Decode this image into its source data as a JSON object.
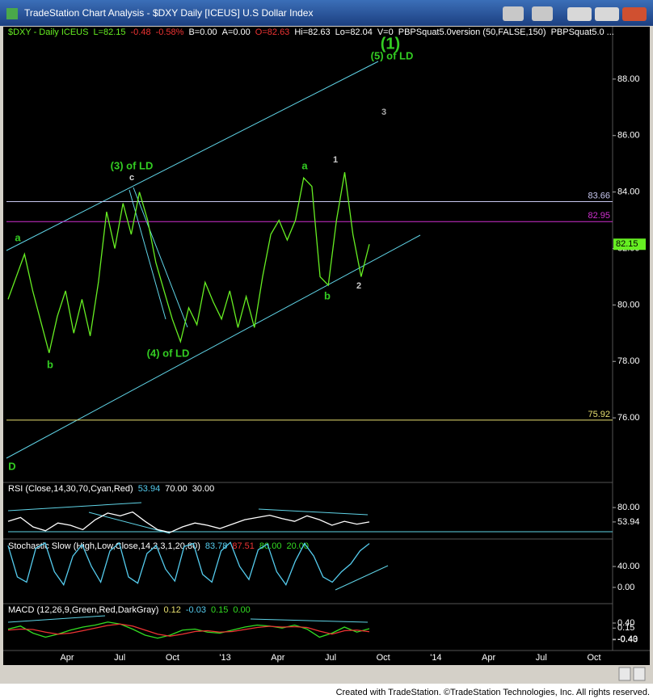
{
  "window": {
    "title": "TradeStation Chart Analysis - $DXY Daily [ICEUS] U.S Dollar Index",
    "footer": "Created with TradeStation. ©TradeStation Technologies, Inc. All rights reserved."
  },
  "price_chart": {
    "header": [
      "$DXY - Daily ICEUS",
      "L=82.15",
      "-0.48",
      "-0.58%",
      "B=0.00",
      "A=0.00",
      "O=82.63",
      "Hi=82.63",
      "Lo=82.04",
      "V=0",
      "PBPSquat5.0version (50,FALSE,150)",
      "PBPSquat5.0 ..."
    ],
    "ylim": [
      73.77,
      89.8
    ],
    "yticks": [
      {
        "value": 76,
        "label": "76.00"
      },
      {
        "value": 78,
        "label": "78.00"
      },
      {
        "value": 80,
        "label": "80.00"
      },
      {
        "value": 82,
        "label": "82.00"
      },
      {
        "value": 84,
        "label": "84.00"
      },
      {
        "value": 86,
        "label": "86.00"
      },
      {
        "value": 88,
        "label": "88.00"
      }
    ],
    "levels": [
      {
        "value": 83.66,
        "color": "#c8c8f0"
      },
      {
        "value": 82.95,
        "color": "#d030d0"
      },
      {
        "value": 75.92,
        "color": "#e8e070"
      }
    ],
    "last": 82.15,
    "color": "#66ee22",
    "values": [
      80.2,
      81.0,
      81.8,
      80.5,
      79.4,
      78.3,
      79.6,
      80.5,
      79.0,
      80.2,
      78.9,
      80.8,
      83.3,
      82.0,
      83.6,
      82.5,
      84.0,
      83.0,
      81.5,
      80.5,
      79.5,
      78.7,
      79.9,
      79.3,
      80.8,
      80.1,
      79.5,
      80.5,
      79.2,
      80.3,
      79.2,
      81.0,
      82.5,
      83.0,
      82.3,
      83.0,
      84.5,
      84.2,
      81.0,
      80.7,
      83.0,
      84.7,
      82.5,
      81.0,
      82.15
    ],
    "annotations": [
      {
        "text": "(1)",
        "color": "#33cc22"
      },
      {
        "text": "(5) of LD",
        "color": "#33cc22"
      },
      {
        "text": "3",
        "color": "#aaaaaa"
      },
      {
        "text": "(3) of LD",
        "color": "#33cc22"
      },
      {
        "text": "c",
        "color": "#dddddd"
      },
      {
        "text": "a",
        "color": "#33cc22"
      },
      {
        "text": "1",
        "color": "#cccccc"
      },
      {
        "text": "b",
        "color": "#33cc22"
      },
      {
        "text": "2",
        "color": "#cccccc"
      },
      {
        "text": "(4) of LD",
        "color": "#33cc22"
      },
      {
        "text": "a",
        "color": "#33cc22"
      },
      {
        "text": "b",
        "color": "#33cc22"
      },
      {
        "text": "D",
        "color": "#33cc22"
      }
    ]
  },
  "rsi": {
    "header": [
      "RSI (Close,14,30,70,Cyan,Red)",
      "53.94",
      "70.00",
      "30.00"
    ],
    "ylim": [
      26,
      124
    ],
    "yticks": [
      {
        "value": 80,
        "label": "80.00"
      },
      {
        "value": 53.94,
        "label": "53.94"
      }
    ],
    "color": "#ffffff",
    "values": [
      55,
      62,
      45,
      38,
      52,
      48,
      40,
      58,
      70,
      65,
      72,
      55,
      40,
      35,
      45,
      52,
      48,
      42,
      50,
      58,
      62,
      66,
      60,
      55,
      65,
      58,
      48,
      55,
      50,
      53.94
    ]
  },
  "stochastic": {
    "header": [
      "Stochastic Slow (High,Low,Close,14,3,3,1,20,80)",
      "83.78",
      "87.51",
      "80.00",
      "20.00"
    ],
    "ylim": [
      -28,
      91
    ],
    "yticks": [
      {
        "value": 40,
        "label": "40.00"
      },
      {
        "value": 0,
        "label": "0.00"
      }
    ],
    "color": "#55ccee",
    "values": [
      80,
      20,
      10,
      75,
      85,
      30,
      5,
      60,
      82,
      40,
      10,
      70,
      85,
      20,
      8,
      65,
      80,
      35,
      12,
      78,
      84,
      25,
      10,
      70,
      86,
      40,
      15,
      72,
      83,
      30,
      5,
      50,
      84,
      60,
      20,
      10,
      30,
      45,
      70,
      83.78
    ]
  },
  "macd": {
    "header": [
      "MACD (12,26,9,Green,Red,DarkGray)",
      "0.12",
      "-0.03",
      "0.15",
      "0.00"
    ],
    "ylim": [
      -0.76,
      1.32
    ],
    "yticks": [
      {
        "value": 0.4,
        "label": "0.40"
      },
      {
        "value": 0.15,
        "label": "0.15"
      },
      {
        "value": -0.4,
        "label": "-0.40"
      },
      {
        "value": -0.43,
        "label": "-0.43"
      }
    ],
    "series": [
      {
        "name": "MACD",
        "color": "#33dd22",
        "values": [
          0.1,
          0.25,
          -0.1,
          -0.3,
          -0.15,
          0.05,
          0.2,
          0.3,
          0.45,
          0.35,
          0.1,
          -0.2,
          -0.35,
          -0.2,
          0.05,
          0.1,
          -0.05,
          -0.1,
          0.05,
          0.2,
          0.3,
          0.25,
          0.15,
          0.3,
          0.1,
          -0.3,
          -0.1,
          0.2,
          -0.05,
          0.12
        ]
      },
      {
        "name": "Signal",
        "color": "#ee3333",
        "values": [
          0.05,
          0.1,
          0.08,
          -0.05,
          -0.15,
          -0.1,
          0.02,
          0.15,
          0.28,
          0.35,
          0.25,
          0.05,
          -0.15,
          -0.25,
          -0.15,
          -0.02,
          0.02,
          -0.05,
          -0.02,
          0.08,
          0.18,
          0.24,
          0.2,
          0.22,
          0.18,
          0,
          -0.15,
          0.02,
          0.05,
          -0.03
        ]
      }
    ]
  },
  "time_axis": [
    "Apr",
    "Jul",
    "Oct",
    "'13",
    "Apr",
    "Jul",
    "Oct",
    "'14",
    "Apr",
    "Jul",
    "Oct"
  ]
}
